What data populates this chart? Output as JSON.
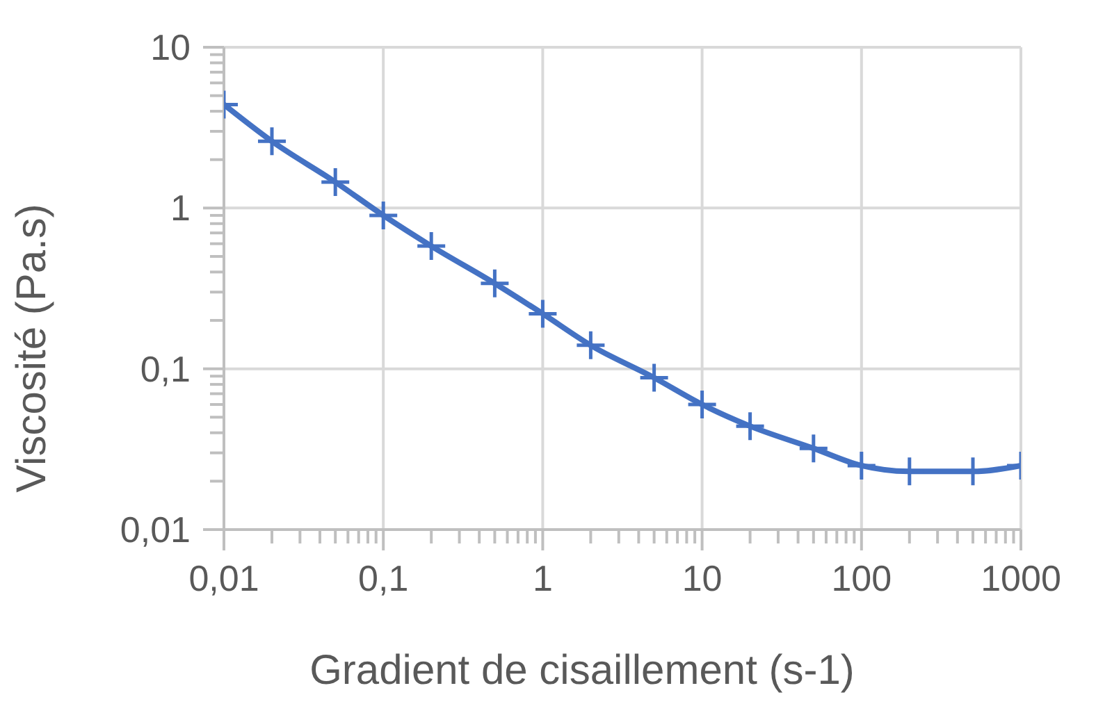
{
  "chart_data": {
    "type": "line",
    "xlabel": "Gradient de cisaillement (s-1)",
    "ylabel": "Viscosité (Pa.s)",
    "x": [
      0.01,
      0.02,
      0.05,
      0.1,
      0.2,
      0.5,
      1,
      2,
      5,
      10,
      20,
      50,
      100,
      200,
      500,
      1000
    ],
    "series": [
      {
        "color": "#4472c4",
        "values": [
          4.4,
          2.6,
          1.45,
          0.9,
          0.58,
          0.34,
          0.22,
          0.14,
          0.088,
          0.06,
          0.044,
          0.032,
          0.025,
          0.023,
          0.023,
          0.025
        ]
      }
    ],
    "log": "xy",
    "xlim": [
      0.01,
      1000
    ],
    "ylim": [
      0.01,
      10
    ],
    "xticks": [
      {
        "value": 0.01,
        "label": "0,01"
      },
      {
        "value": 0.02,
        "label": null
      },
      {
        "value": 0.03,
        "label": null
      },
      {
        "value": 0.04,
        "label": null
      },
      {
        "value": 0.05,
        "label": null
      },
      {
        "value": 0.06,
        "label": null
      },
      {
        "value": 0.07,
        "label": null
      },
      {
        "value": 0.08,
        "label": null
      },
      {
        "value": 0.09,
        "label": null
      },
      {
        "value": 0.1,
        "label": "0,1"
      },
      {
        "value": 0.2,
        "label": null
      },
      {
        "value": 0.3,
        "label": null
      },
      {
        "value": 0.4,
        "label": null
      },
      {
        "value": 0.5,
        "label": null
      },
      {
        "value": 0.6,
        "label": null
      },
      {
        "value": 0.7,
        "label": null
      },
      {
        "value": 0.8,
        "label": null
      },
      {
        "value": 0.9,
        "label": null
      },
      1,
      {
        "value": 2,
        "label": null
      },
      {
        "value": 3,
        "label": null
      },
      {
        "value": 4,
        "label": null
      },
      {
        "value": 5,
        "label": null
      },
      {
        "value": 6,
        "label": null
      },
      {
        "value": 7,
        "label": null
      },
      {
        "value": 8,
        "label": null
      },
      {
        "value": 9,
        "label": null
      },
      10,
      {
        "value": 20,
        "label": null
      },
      {
        "value": 30,
        "label": null
      },
      {
        "value": 40,
        "label": null
      },
      {
        "value": 50,
        "label": null
      },
      {
        "value": 60,
        "label": null
      },
      {
        "value": 70,
        "label": null
      },
      {
        "value": 80,
        "label": null
      },
      {
        "value": 90,
        "label": null
      },
      100,
      {
        "value": 200,
        "label": null
      },
      {
        "value": 300,
        "label": null
      },
      {
        "value": 400,
        "label": null
      },
      {
        "value": 500,
        "label": null
      },
      {
        "value": 600,
        "label": null
      },
      {
        "value": 700,
        "label": null
      },
      {
        "value": 800,
        "label": null
      },
      {
        "value": 900,
        "label": null
      },
      1000
    ],
    "yticks": [
      {
        "value": 0.01,
        "label": "0,01"
      },
      {
        "value": 0.02,
        "label": null
      },
      {
        "value": 0.03,
        "label": null
      },
      {
        "value": 0.04,
        "label": null
      },
      {
        "value": 0.05,
        "label": null
      },
      {
        "value": 0.06,
        "label": null
      },
      {
        "value": 0.07,
        "label": null
      },
      {
        "value": 0.08,
        "label": null
      },
      {
        "value": 0.09,
        "label": null
      },
      {
        "value": 0.1,
        "label": "0,1"
      },
      {
        "value": 0.2,
        "label": null
      },
      {
        "value": 0.3,
        "label": null
      },
      {
        "value": 0.4,
        "label": null
      },
      {
        "value": 0.5,
        "label": null
      },
      {
        "value": 0.6,
        "label": null
      },
      {
        "value": 0.7,
        "label": null
      },
      {
        "value": 0.8,
        "label": null
      },
      {
        "value": 0.9,
        "label": null
      },
      1,
      {
        "value": 2,
        "label": null
      },
      {
        "value": 3,
        "label": null
      },
      {
        "value": 4,
        "label": null
      },
      {
        "value": 5,
        "label": null
      },
      {
        "value": 6,
        "label": null
      },
      {
        "value": 7,
        "label": null
      },
      {
        "value": 8,
        "label": null
      },
      {
        "value": 9,
        "label": null
      },
      10
    ],
    "grid": true,
    "marker": "cross",
    "line_style": "solid"
  }
}
